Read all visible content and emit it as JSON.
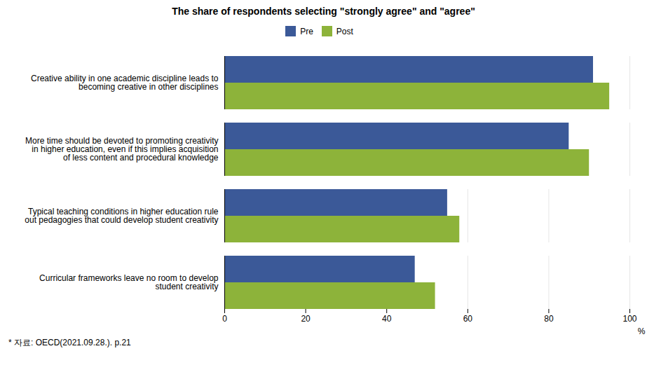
{
  "chart_data": {
    "type": "bar",
    "orientation": "horizontal",
    "title": "The share of respondents selecting \"strongly agree\" and \"agree\"",
    "categories": [
      "Creative ability in one academic discipline leads to\nbecoming creative in other disciplines",
      "More time should be devoted to promoting creativity\nin higher education, even if this implies acquisition\nof less content and procedural knowledge",
      "Typical teaching conditions in higher education rule\nout pedagogies that could develop student creativity",
      "Curricular frameworks leave no room to develop\nstudent creativity"
    ],
    "series": [
      {
        "name": "Pre",
        "color": "#3B5998",
        "values": [
          91,
          85,
          55,
          47
        ]
      },
      {
        "name": "Post",
        "color": "#8DB33A",
        "values": [
          95,
          90,
          58,
          52
        ]
      }
    ],
    "xlim": [
      0,
      100
    ],
    "xticks": [
      0,
      20,
      40,
      60,
      80,
      100
    ],
    "xlabel": "%",
    "grid": true,
    "legend": "top",
    "footnote": "* 자료:  OECD(2021.09.28.).  p.21"
  }
}
